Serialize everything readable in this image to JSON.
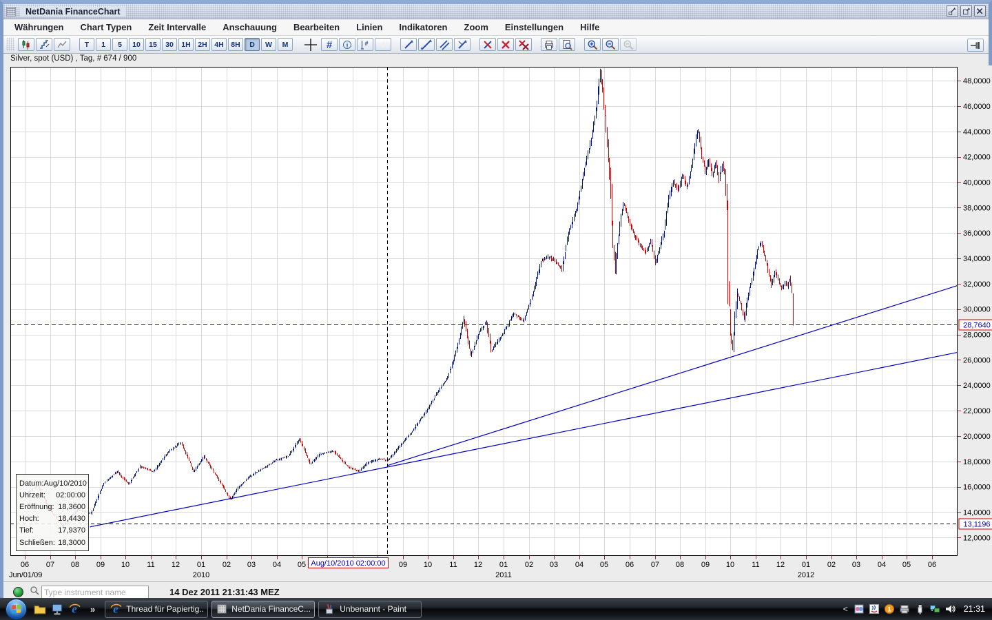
{
  "window": {
    "title": "NetDania FinanceChart",
    "buttons": [
      {
        "name": "minimize-button",
        "icon": "minimize-icon"
      },
      {
        "name": "restore-button",
        "icon": "restore-icon"
      },
      {
        "name": "close-button",
        "icon": "close-icon"
      }
    ]
  },
  "menu": {
    "items": [
      "Währungen",
      "Chart Typen",
      "Zeit Intervalle",
      "Anschauung",
      "Bearbeiten",
      "Linien",
      "Indikatoren",
      "Zoom",
      "Einstellungen",
      "Hilfe"
    ]
  },
  "toolbar": {
    "groups": [
      {
        "name": "chart-type-group",
        "buttons": [
          {
            "name": "candlestick-chart-button",
            "icon": "candlestick-icon"
          },
          {
            "name": "ohlc-chart-button",
            "icon": "ohlc-icon"
          },
          {
            "name": "line-chart-button",
            "icon": "line-chart-icon"
          }
        ]
      },
      {
        "name": "interval-group",
        "buttons": [
          {
            "name": "interval-T-button",
            "label": "T"
          },
          {
            "name": "interval-1-button",
            "label": "1"
          },
          {
            "name": "interval-5-button",
            "label": "5"
          },
          {
            "name": "interval-10-button",
            "label": "10"
          },
          {
            "name": "interval-15-button",
            "label": "15"
          },
          {
            "name": "interval-30-button",
            "label": "30"
          },
          {
            "name": "interval-1H-button",
            "label": "1H"
          },
          {
            "name": "interval-2H-button",
            "label": "2H"
          },
          {
            "name": "interval-4H-button",
            "label": "4H"
          },
          {
            "name": "interval-8H-button",
            "label": "8H"
          },
          {
            "name": "interval-D-button",
            "label": "D",
            "pressed": true
          },
          {
            "name": "interval-W-button",
            "label": "W"
          },
          {
            "name": "interval-M-button",
            "label": "M"
          }
        ]
      },
      {
        "name": "display-group",
        "buttons": [
          {
            "name": "crosshair-button",
            "icon": "crosshair-icon",
            "flat": true
          },
          {
            "name": "grid-button",
            "icon": "grid-icon"
          },
          {
            "name": "info-button",
            "icon": "info-icon"
          },
          {
            "name": "bar-count-button",
            "icon": "count-icon"
          },
          {
            "name": "volume-button",
            "icon": "volume-icon"
          }
        ]
      },
      {
        "name": "draw-group",
        "buttons": [
          {
            "name": "trendline-button",
            "icon": "trend1-icon"
          },
          {
            "name": "trendline-extended-button",
            "icon": "trend2-icon"
          },
          {
            "name": "channel-button",
            "icon": "trend3-icon"
          },
          {
            "name": "ray-button",
            "icon": "trend4-icon"
          }
        ]
      },
      {
        "name": "delete-group",
        "buttons": [
          {
            "name": "delete-line-button",
            "icon": "delete-line-icon"
          },
          {
            "name": "delete-button",
            "icon": "delete-icon"
          },
          {
            "name": "delete-all-button",
            "icon": "delete-all-icon"
          }
        ]
      },
      {
        "name": "print-group",
        "buttons": [
          {
            "name": "print-button",
            "icon": "printer-icon"
          },
          {
            "name": "print-preview-button",
            "icon": "preview-icon"
          }
        ]
      },
      {
        "name": "zoom-group",
        "buttons": [
          {
            "name": "zoom-in-button",
            "icon": "zoom-in-icon"
          },
          {
            "name": "zoom-out-button",
            "icon": "zoom-out-icon"
          },
          {
            "name": "zoom-reset-button",
            "icon": "zoom-disabled-icon",
            "disabled": true
          }
        ]
      }
    ],
    "pin_button": {
      "name": "pin-toolbar-button",
      "icon": "pin-icon"
    }
  },
  "chart_header": {
    "instrument": "Silver, spot (USD) , Tag, # 674 / 900"
  },
  "tooltip": {
    "rows": [
      {
        "label": "Datum:",
        "value": "Aug/10/2010"
      },
      {
        "label": "Uhrzeit:",
        "value": "02:00:00"
      },
      {
        "label": "Eröffnung:",
        "value": "18,3600"
      },
      {
        "label": "Hoch:",
        "value": "18,4430"
      },
      {
        "label": "Tief:",
        "value": "17,9370"
      },
      {
        "label": "Schließen:",
        "value": "18,3000"
      }
    ]
  },
  "chart_data": {
    "type": "candlestick",
    "title": "Silver, spot (USD), Tag (daily)",
    "bars_shown": 674,
    "bars_total": 900,
    "y_axis": {
      "tick_values": [
        12,
        14,
        16,
        18,
        20,
        22,
        24,
        26,
        28,
        30,
        32,
        34,
        36,
        38,
        40,
        42,
        44,
        46,
        48
      ],
      "label_suffix": ",0000",
      "top_price": 49.09,
      "bottom_price": 10.55
    },
    "x_axis": {
      "months": [
        "06",
        "07",
        "08",
        "09",
        "10",
        "11",
        "12",
        "01",
        "02",
        "03",
        "04",
        "05",
        "06",
        "07",
        "08",
        "09",
        "10",
        "11",
        "12",
        "01",
        "02",
        "03",
        "04",
        "05",
        "06",
        "07",
        "08",
        "09",
        "10",
        "11",
        "12",
        "01",
        "02",
        "03",
        "04",
        "05",
        "06"
      ],
      "year_labels": [
        {
          "label": "Jun/01/09",
          "month_index": 0
        },
        {
          "label": "2010",
          "month_index": 7
        },
        {
          "label": "2011",
          "month_index": 19
        },
        {
          "label": "2012",
          "month_index": 31
        }
      ]
    },
    "last_price_label": "28,7640",
    "last_price_value": 28.764,
    "last_bar": {
      "open": 30.9,
      "high": 31.25,
      "low": 28.7,
      "close": 28.764
    },
    "crosshair": {
      "x_label": "Aug/10/2010 02:00:00",
      "y_label": "13,1196",
      "bar_index": 317,
      "price": 13.1196
    },
    "trendlines": [
      {
        "from_bar": 317,
        "from_price": 17.67,
        "to_bar": 817,
        "to_price": 31.84
      },
      {
        "from_bar": 56,
        "from_price": 12.84,
        "to_bar": 817,
        "to_price": 26.58
      }
    ],
    "colors": {
      "up": "#001489",
      "down": "#d00000",
      "trend": "#0000c0",
      "last_price_line": "#0000cc",
      "crosshair": "#000000",
      "grid": "#d9d9d9",
      "marker_border": "#cc0000",
      "marker_text": "#0000bb",
      "tick": "#a03028"
    },
    "price_path": [
      [
        0,
        15.4
      ],
      [
        10,
        16.1
      ],
      [
        22,
        14.0
      ],
      [
        32,
        12.9
      ],
      [
        45,
        14.2
      ],
      [
        57,
        13.9
      ],
      [
        68,
        16.3
      ],
      [
        80,
        17.2
      ],
      [
        90,
        16.2
      ],
      [
        100,
        17.6
      ],
      [
        112,
        17.2
      ],
      [
        124,
        18.7
      ],
      [
        136,
        19.5
      ],
      [
        147,
        17.2
      ],
      [
        156,
        18.4
      ],
      [
        166,
        17.0
      ],
      [
        179,
        15.0
      ],
      [
        186,
        15.9
      ],
      [
        196,
        16.8
      ],
      [
        207,
        17.4
      ],
      [
        219,
        18.1
      ],
      [
        230,
        18.4
      ],
      [
        240,
        19.8
      ],
      [
        249,
        17.8
      ],
      [
        258,
        18.6
      ],
      [
        270,
        18.8
      ],
      [
        282,
        17.6
      ],
      [
        292,
        17.2
      ],
      [
        300,
        17.9
      ],
      [
        310,
        18.2
      ],
      [
        317,
        18.05
      ],
      [
        326,
        19.0
      ],
      [
        338,
        20.3
      ],
      [
        350,
        21.8
      ],
      [
        360,
        23.3
      ],
      [
        370,
        24.6
      ],
      [
        378,
        26.9
      ],
      [
        384,
        29.3
      ],
      [
        390,
        26.4
      ],
      [
        398,
        28.2
      ],
      [
        404,
        29.0
      ],
      [
        408,
        26.7
      ],
      [
        414,
        27.5
      ],
      [
        420,
        28.3
      ],
      [
        428,
        29.7
      ],
      [
        436,
        29.0
      ],
      [
        444,
        31.0
      ],
      [
        452,
        33.8
      ],
      [
        458,
        34.1
      ],
      [
        464,
        33.9
      ],
      [
        470,
        33.1
      ],
      [
        476,
        36.0
      ],
      [
        484,
        38.2
      ],
      [
        490,
        41.2
      ],
      [
        496,
        43.5
      ],
      [
        501,
        46.3
      ],
      [
        504,
        48.8
      ],
      [
        506,
        47.2
      ],
      [
        509,
        44.0
      ],
      [
        512,
        40.5
      ],
      [
        515,
        35.2
      ],
      [
        517,
        33.2
      ],
      [
        521,
        36.8
      ],
      [
        524,
        38.4
      ],
      [
        528,
        37.2
      ],
      [
        533,
        36.0
      ],
      [
        538,
        35.1
      ],
      [
        544,
        34.5
      ],
      [
        548,
        35.4
      ],
      [
        552,
        33.6
      ],
      [
        556,
        34.8
      ],
      [
        560,
        36.2
      ],
      [
        564,
        38.8
      ],
      [
        568,
        40.1
      ],
      [
        572,
        39.3
      ],
      [
        576,
        40.5
      ],
      [
        580,
        39.6
      ],
      [
        584,
        41.3
      ],
      [
        588,
        43.6
      ],
      [
        590,
        44.1
      ],
      [
        593,
        42.0
      ],
      [
        596,
        40.8
      ],
      [
        599,
        41.8
      ],
      [
        602,
        40.5
      ],
      [
        605,
        41.6
      ],
      [
        608,
        40.2
      ],
      [
        611,
        41.4
      ],
      [
        613,
        40.6
      ],
      [
        615,
        38.0
      ],
      [
        616,
        32.0
      ],
      [
        618,
        28.0
      ],
      [
        620,
        26.8
      ],
      [
        622,
        29.5
      ],
      [
        624,
        31.2
      ],
      [
        627,
        30.4
      ],
      [
        630,
        29.2
      ],
      [
        633,
        30.8
      ],
      [
        636,
        32.0
      ],
      [
        639,
        33.2
      ],
      [
        642,
        34.6
      ],
      [
        645,
        35.3
      ],
      [
        648,
        34.2
      ],
      [
        651,
        33.0
      ],
      [
        654,
        31.9
      ],
      [
        657,
        33.0
      ],
      [
        660,
        32.3
      ],
      [
        663,
        31.6
      ],
      [
        666,
        32.2
      ],
      [
        668,
        31.8
      ],
      [
        670,
        32.4
      ],
      [
        672,
        31.5
      ],
      [
        673,
        29.0
      ]
    ]
  },
  "statusbar": {
    "search_placeholder": "Type instrument name",
    "timestamp": "14 Dez 2011 21:31:43 MEZ"
  },
  "taskbar": {
    "quicklaunch": [
      {
        "name": "folder-icon"
      },
      {
        "name": "desktop-icon"
      },
      {
        "name": "ie-icon"
      }
    ],
    "overflow_chevron": "»",
    "tasks": [
      {
        "label": "Thread für Papiertig...",
        "icon": "ie-icon",
        "active": false
      },
      {
        "label": "NetDania FinanceC...",
        "icon": "netdania-icon",
        "active": true
      },
      {
        "label": "Unbenannt - Paint",
        "icon": "paint-icon",
        "active": false
      }
    ],
    "tray": {
      "chevron": "<",
      "icons": [
        {
          "name": "messenger-icon"
        },
        {
          "name": "java-icon"
        },
        {
          "name": "update-badge-icon",
          "badge": "1"
        },
        {
          "name": "printer-tray-icon"
        },
        {
          "name": "power-icon"
        },
        {
          "name": "network-icon"
        },
        {
          "name": "volume-icon"
        }
      ],
      "clock": "21:31"
    }
  }
}
